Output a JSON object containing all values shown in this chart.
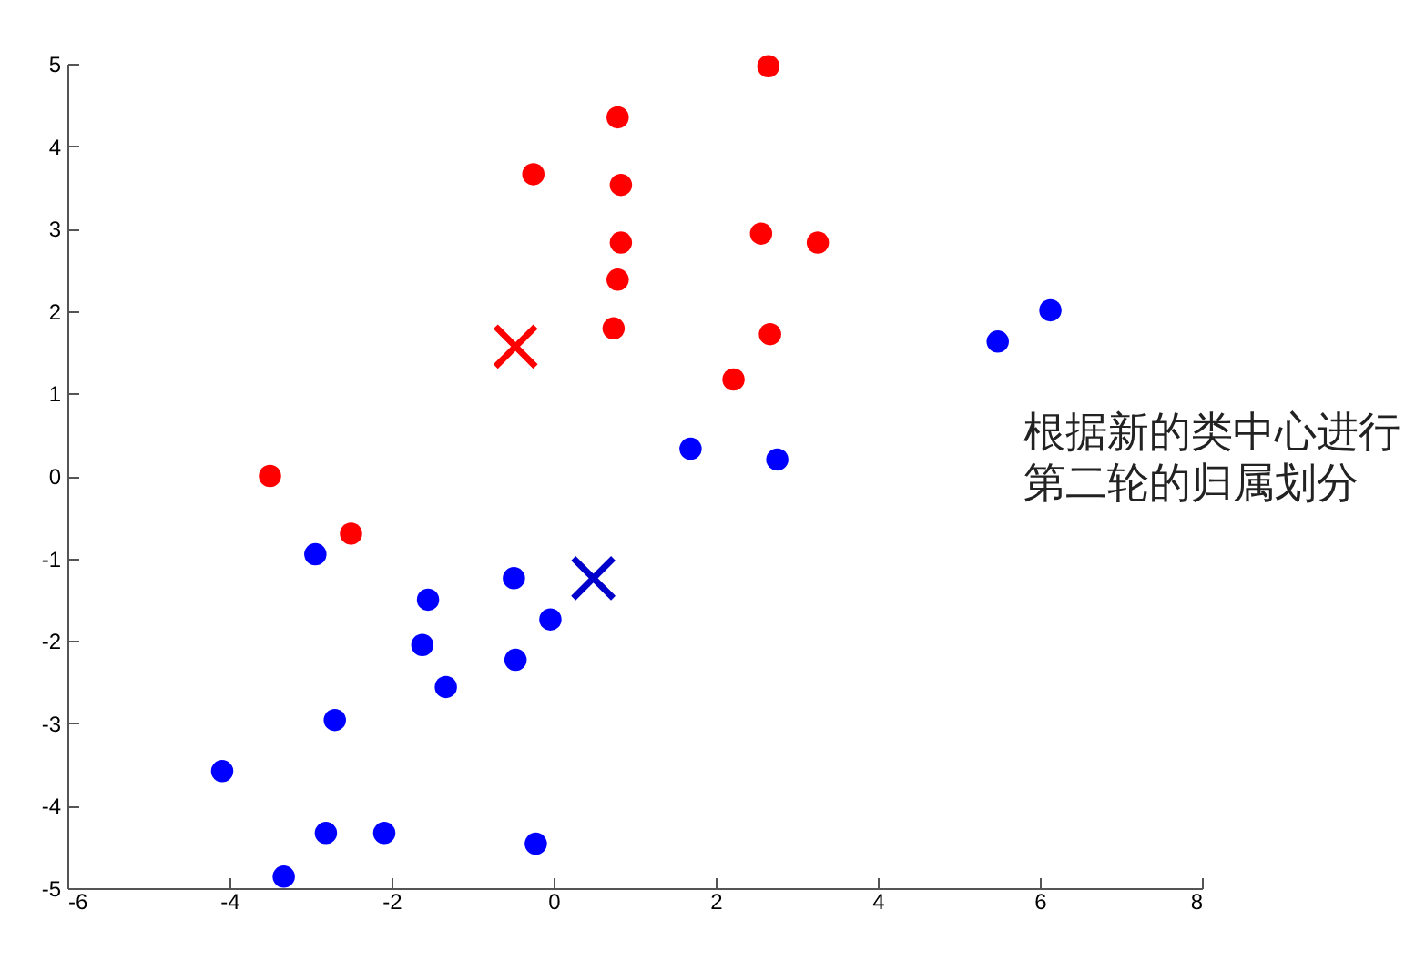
{
  "chart_data": {
    "type": "scatter",
    "xlim": [
      -6,
      8
    ],
    "ylim": [
      -5,
      5
    ],
    "xticks": [
      -6,
      -4,
      -2,
      0,
      2,
      4,
      6,
      8
    ],
    "yticks": [
      -5,
      -4,
      -3,
      -2,
      -1,
      0,
      1,
      2,
      3,
      4,
      5
    ],
    "grid": false,
    "annotations": [
      "根据新的类中心进行第二轮的归属划分"
    ],
    "series": [
      {
        "color": "#ff0000",
        "marker": "circle",
        "x": [
          -3.5,
          -2.5,
          -0.25,
          0.79,
          0.83,
          0.83,
          0.79,
          0.74,
          2.65,
          2.56,
          3.26,
          2.67,
          2.22
        ],
        "values": [
          0,
          -0.7,
          3.66,
          4.35,
          3.53,
          2.83,
          2.38,
          1.79,
          4.97,
          2.94,
          2.83,
          1.72,
          1.17
        ]
      },
      {
        "color": "#0000ff",
        "marker": "circle",
        "x": [
          -2.94,
          -1.55,
          -1.62,
          -1.33,
          -2.7,
          -4.09,
          -2.81,
          -2.09,
          -3.33,
          -0.49,
          -0.47,
          -0.04,
          -0.22,
          1.69,
          2.76,
          5.48,
          6.13
        ],
        "values": [
          -0.95,
          -1.5,
          -2.05,
          -2.56,
          -2.96,
          -3.58,
          -4.33,
          -4.33,
          -4.86,
          -1.24,
          -2.23,
          -1.74,
          -4.46,
          0.33,
          0.2,
          1.63,
          2.01
        ]
      },
      {
        "color": "#ff0000",
        "marker": "cross",
        "x": [
          -0.47
        ],
        "values": [
          1.57
        ]
      },
      {
        "color": "#0000cc",
        "marker": "cross",
        "x": [
          0.49
        ],
        "values": [
          -1.24
        ]
      }
    ]
  }
}
